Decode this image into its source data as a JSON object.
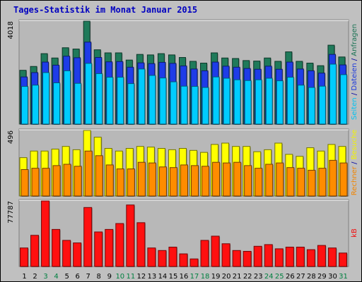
{
  "title": "Tages-Statistik im Monat Januar 2015",
  "chart_data": [
    {
      "type": "bar",
      "panel": "top",
      "ymax_label": "4018",
      "ylim": [
        0,
        4018
      ],
      "categories": [
        "1",
        "2",
        "3",
        "4",
        "5",
        "6",
        "7",
        "8",
        "9",
        "10",
        "11",
        "12",
        "13",
        "14",
        "15",
        "16",
        "17",
        "18",
        "19",
        "20",
        "21",
        "22",
        "23",
        "24",
        "25",
        "26",
        "27",
        "28",
        "29",
        "30",
        "31"
      ],
      "weekend_days": [
        "3",
        "4",
        "10",
        "11",
        "17",
        "18",
        "24",
        "25",
        "31"
      ],
      "series": [
        {
          "name": "Anfragen",
          "color": "#1f7a5a",
          "values": [
            2100,
            2250,
            2750,
            2580,
            2980,
            2930,
            4018,
            2900,
            2780,
            2780,
            2500,
            2720,
            2700,
            2750,
            2700,
            2600,
            2450,
            2380,
            2780,
            2580,
            2560,
            2480,
            2460,
            2580,
            2450,
            2820,
            2450,
            2380,
            2280,
            3080,
            2620
          ]
        },
        {
          "name": "Dateien",
          "color": "#1e3ce8",
          "values": [
            1840,
            2010,
            2420,
            2300,
            2650,
            2590,
            3200,
            2600,
            2430,
            2440,
            2220,
            2390,
            2360,
            2410,
            2370,
            2270,
            2150,
            2080,
            2420,
            2260,
            2220,
            2170,
            2140,
            2260,
            2140,
            2420,
            2150,
            2080,
            1990,
            2720,
            2310
          ]
        },
        {
          "name": "Seiten",
          "color": "#00ccff",
          "values": [
            1470,
            1520,
            2010,
            1610,
            2080,
            1590,
            2370,
            1970,
            1830,
            1830,
            1580,
            2150,
            1900,
            1800,
            1650,
            1480,
            1470,
            1430,
            1840,
            1790,
            1730,
            1700,
            1730,
            1790,
            1690,
            1830,
            1520,
            1430,
            1480,
            2340,
            1930
          ]
        }
      ],
      "legend_labels": [
        "Seiten",
        "Dateien",
        "Anfragen"
      ],
      "legend_separator": "/"
    },
    {
      "type": "bar",
      "panel": "middle",
      "ymax_label": "496",
      "ylim": [
        0,
        496
      ],
      "series": [
        {
          "name": "Besuche",
          "color": "#ffff00",
          "values": [
            290,
            340,
            340,
            355,
            375,
            350,
            496,
            445,
            360,
            340,
            360,
            375,
            370,
            360,
            350,
            360,
            345,
            330,
            390,
            400,
            375,
            375,
            335,
            350,
            400,
            315,
            300,
            365,
            340,
            390,
            375
          ]
        },
        {
          "name": "Rechner",
          "color": "#ff8c00",
          "values": [
            200,
            210,
            210,
            230,
            240,
            225,
            340,
            305,
            235,
            205,
            205,
            255,
            250,
            220,
            215,
            235,
            230,
            225,
            255,
            250,
            255,
            230,
            210,
            240,
            250,
            215,
            210,
            195,
            210,
            270,
            250
          ]
        }
      ],
      "legend_labels": [
        "Rechner",
        "Besuche"
      ],
      "legend_separator": "/"
    },
    {
      "type": "bar",
      "panel": "bottom",
      "ymax_label": "77787",
      "ylim": [
        0,
        77787
      ],
      "series": [
        {
          "name": "kB",
          "color": "#ff1010",
          "values": [
            22000,
            37000,
            77787,
            44000,
            31000,
            28000,
            70000,
            41000,
            44000,
            51000,
            73000,
            52000,
            22000,
            19000,
            23000,
            15000,
            9000,
            31000,
            36000,
            27000,
            19000,
            18000,
            24000,
            26000,
            21000,
            23000,
            23000,
            20000,
            25000,
            22000,
            16000
          ]
        }
      ],
      "legend_labels": [
        "kB"
      ]
    }
  ]
}
